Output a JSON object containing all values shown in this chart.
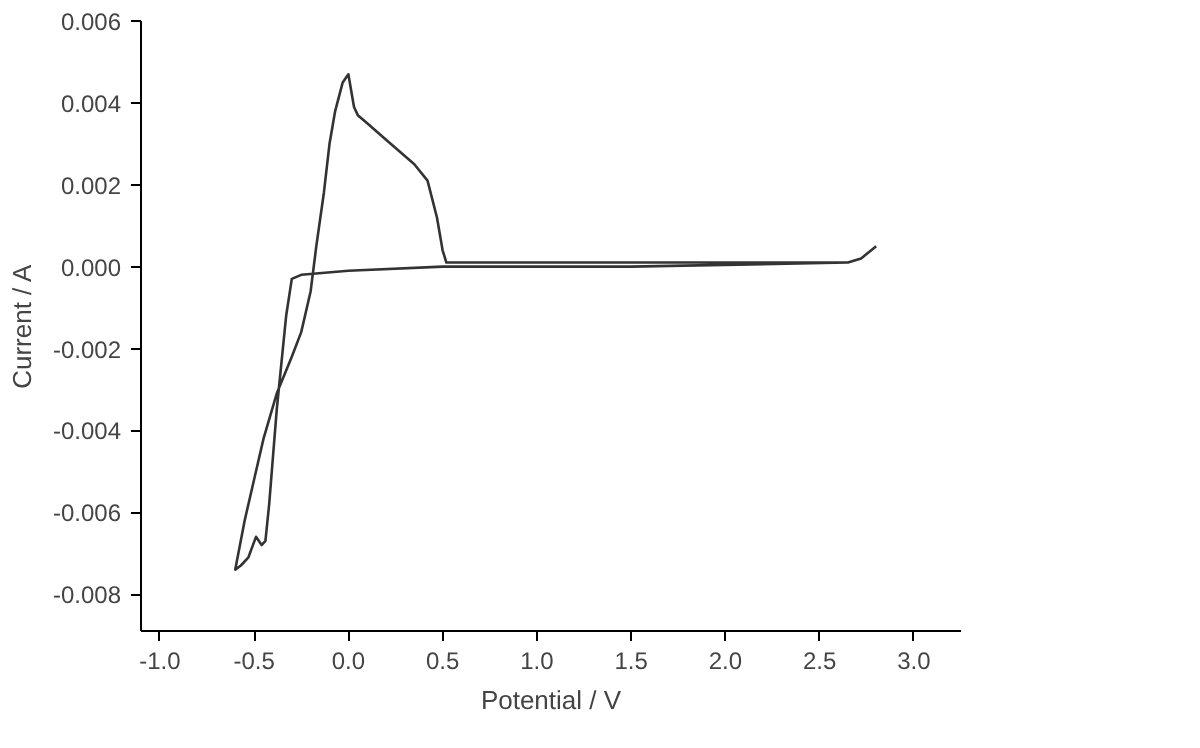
{
  "chart_data": {
    "type": "line",
    "xlabel": "Potential / V",
    "ylabel": "Current / A",
    "x": [
      2.8,
      2.72,
      2.65,
      2.0,
      1.0,
      0.52,
      0.5,
      0.47,
      0.42,
      0.35,
      0.2,
      0.1,
      0.05,
      0.03,
      0.0,
      -0.03,
      -0.07,
      -0.1,
      -0.13,
      -0.17,
      -0.2,
      -0.25,
      -0.3,
      -0.38,
      -0.45,
      -0.5,
      -0.55,
      -0.6,
      -0.57,
      -0.53,
      -0.49,
      -0.46,
      -0.44,
      -0.42,
      -0.38,
      -0.33,
      -0.3,
      -0.25,
      0.0,
      0.5,
      1.5,
      2.65
    ],
    "series": [
      {
        "color": "#333333",
        "values": [
          0.0005,
          0.0002,
          0.0001,
          0.0001,
          0.0001,
          0.0001,
          0.0004,
          0.0012,
          0.0021,
          0.0025,
          0.0031,
          0.0035,
          0.0037,
          0.0039,
          0.0047,
          0.0045,
          0.0038,
          0.003,
          0.0018,
          0.0005,
          -0.0006,
          -0.0016,
          -0.0022,
          -0.0031,
          -0.0042,
          -0.0052,
          -0.0062,
          -0.0074,
          -0.0073,
          -0.0071,
          -0.0066,
          -0.0068,
          -0.0067,
          -0.0058,
          -0.0035,
          -0.0012,
          -0.0003,
          -0.0002,
          -0.0001,
          0.0,
          0.0,
          0.0001
        ]
      }
    ],
    "xlim": [
      -1.1,
      3.25
    ],
    "ylim": [
      -0.0089,
      0.006
    ],
    "xticks": [
      {
        "value": -1.0,
        "label": "-1.0"
      },
      -0.5,
      {
        "value": 0.0,
        "label": "0.0"
      },
      0.5,
      {
        "value": 1.0,
        "label": "1.0"
      },
      1.5,
      {
        "value": 2.0,
        "label": "2.0"
      },
      2.5,
      {
        "value": 3.0,
        "label": "3.0"
      }
    ],
    "yticks": [
      {
        "value": -0.008,
        "label": "-0.008"
      },
      {
        "value": -0.006,
        "label": "-0.006"
      },
      {
        "value": -0.004,
        "label": "-0.004"
      },
      {
        "value": -0.002,
        "label": "-0.002"
      },
      {
        "value": 0,
        "label": "0.000"
      },
      {
        "value": 0.002,
        "label": "0.002"
      },
      {
        "value": 0.004,
        "label": "0.004"
      },
      {
        "value": 0.006,
        "label": "0.006"
      }
    ],
    "grid": false
  }
}
